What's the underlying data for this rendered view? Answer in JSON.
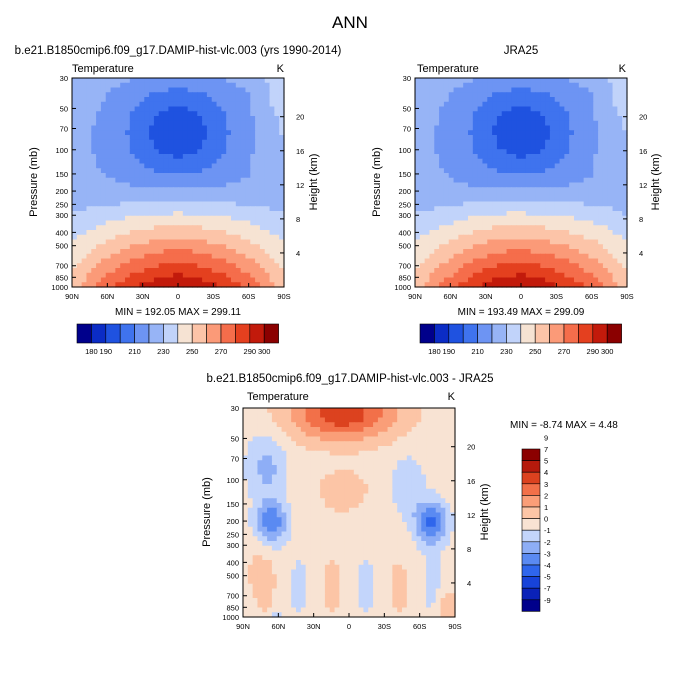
{
  "page_title": "ANN",
  "chart_data": [
    {
      "type": "heatmap",
      "id": "model",
      "title": "b.e21.B1850cmip6.f09_g17.DAMIP-hist-vlc.003 (yrs 1990-2014)",
      "subtitle_left": "Temperature",
      "subtitle_right": "K",
      "xlabel": "",
      "ylabel": "Pressure (mb)",
      "ylabel_right": "Height (km)",
      "x_ticks": [
        "90N",
        "60N",
        "30N",
        "0",
        "30S",
        "60S",
        "90S"
      ],
      "y_ticks": [
        "30",
        "50",
        "70",
        "100",
        "150",
        "200",
        "250",
        "300",
        "400",
        "500",
        "700",
        "850",
        "1000"
      ],
      "y_ticks_right": [
        "20",
        "16",
        "12",
        "8",
        "4"
      ],
      "stats": "MIN = 192.05  MAX = 299.11",
      "min": 192.05,
      "max": 299.11,
      "levels": [
        180,
        190,
        200,
        210,
        220,
        230,
        240,
        250,
        260,
        270,
        280,
        290,
        300
      ],
      "colorbar_labels": [
        "180",
        "190",
        "210",
        "230",
        "250",
        "270",
        "290",
        "300"
      ]
    },
    {
      "type": "heatmap",
      "id": "obs",
      "title": "JRA25",
      "subtitle_left": "Temperature",
      "subtitle_right": "K",
      "xlabel": "",
      "ylabel": "Pressure (mb)",
      "ylabel_right": "Height (km)",
      "x_ticks": [
        "90N",
        "60N",
        "30N",
        "0",
        "30S",
        "60S",
        "90S"
      ],
      "y_ticks": [
        "30",
        "50",
        "70",
        "100",
        "150",
        "200",
        "250",
        "300",
        "400",
        "500",
        "700",
        "850",
        "1000"
      ],
      "y_ticks_right": [
        "20",
        "16",
        "12",
        "8",
        "4"
      ],
      "stats": "MIN = 193.49  MAX = 299.09",
      "min": 193.49,
      "max": 299.09,
      "levels": [
        180,
        190,
        200,
        210,
        220,
        230,
        240,
        250,
        260,
        270,
        280,
        290,
        300
      ],
      "colorbar_labels": [
        "180",
        "190",
        "210",
        "230",
        "250",
        "270",
        "290",
        "300"
      ]
    },
    {
      "type": "heatmap",
      "id": "diff",
      "title": "b.e21.B1850cmip6.f09_g17.DAMIP-hist-vlc.003 - JRA25",
      "subtitle_left": "Temperature",
      "subtitle_right": "K",
      "xlabel": "",
      "ylabel": "Pressure (mb)",
      "ylabel_right": "Height (km)",
      "x_ticks": [
        "90N",
        "60N",
        "30N",
        "0",
        "30S",
        "60S",
        "90S"
      ],
      "y_ticks": [
        "30",
        "50",
        "70",
        "100",
        "150",
        "200",
        "250",
        "300",
        "400",
        "500",
        "700",
        "850",
        "1000"
      ],
      "y_ticks_right": [
        "20",
        "16",
        "12",
        "8",
        "4"
      ],
      "stats": "MIN =  -8.74  MAX =   4.48",
      "min": -8.74,
      "max": 4.48,
      "levels": [
        -9,
        -7,
        -5,
        -4,
        -3,
        -2,
        -1,
        0,
        1,
        2,
        3,
        4,
        5,
        7,
        9
      ],
      "colorbar_labels": [
        "9",
        "7",
        "5",
        "4",
        "3",
        "2",
        "1",
        "0",
        "-1",
        "-2",
        "-3",
        "-4",
        "-5",
        "-7",
        "-9"
      ]
    }
  ],
  "colors": {
    "abs_palette": [
      "#00008b",
      "#0b2cc5",
      "#1f52e0",
      "#3f73ee",
      "#6d94f3",
      "#97b4f6",
      "#c1d3fa",
      "#f6e3d3",
      "#fcc4a8",
      "#fb9a78",
      "#f56d4b",
      "#e4401f",
      "#c21a0b",
      "#8b0000"
    ],
    "diff_palette": [
      "#00008b",
      "#0a22b8",
      "#1743d9",
      "#2f66ec",
      "#5a8af2",
      "#8eaef6",
      "#c3d5fb",
      "#f8e3d3",
      "#fcc5a6",
      "#fa9e78",
      "#f27049",
      "#dc421f",
      "#b51a0c",
      "#8b0000"
    ]
  }
}
